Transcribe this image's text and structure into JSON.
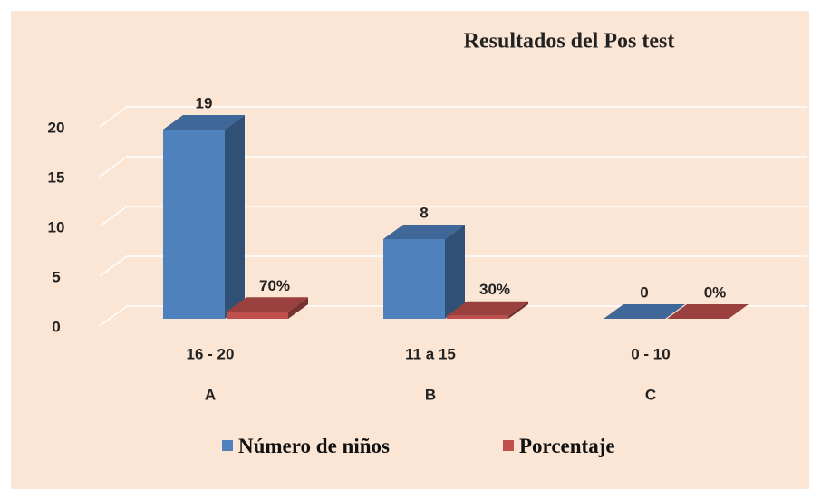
{
  "chart_data": {
    "type": "bar3d",
    "title": "Resultados del Pos test",
    "categories": [
      "16 - 20",
      "11 a 15",
      "0 - 10"
    ],
    "groups": [
      "A",
      "B",
      "C"
    ],
    "series": [
      {
        "name": "Número de niños",
        "color": "#4f81bd",
        "values": [
          19,
          8,
          0
        ]
      },
      {
        "name": "Porcentaje",
        "color": "#c0504d",
        "values": [
          0.7,
          0.3,
          0
        ],
        "value_labels": [
          "70%",
          "30%",
          "0%"
        ]
      }
    ],
    "ylim": [
      0,
      20
    ],
    "yticks": [
      0,
      5,
      10,
      15,
      20
    ],
    "grid": true,
    "legend": "bottom"
  }
}
